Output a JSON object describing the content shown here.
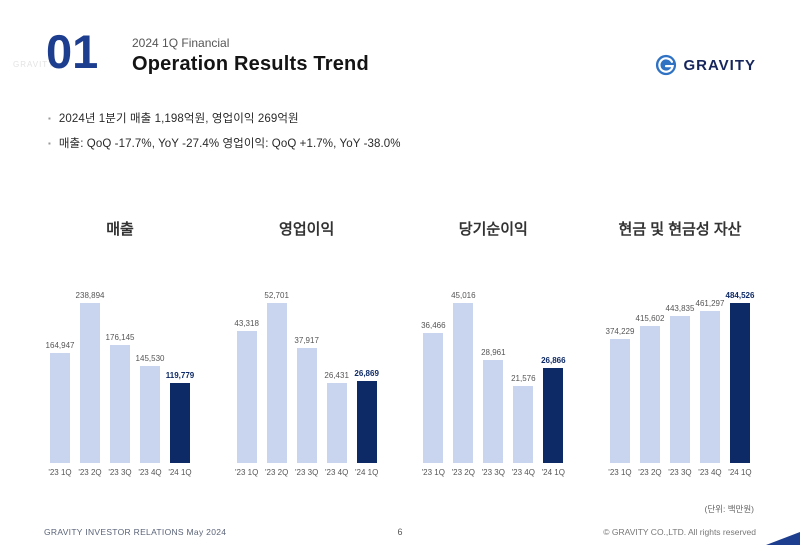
{
  "header": {
    "slide_number": "01",
    "kicker": "2024 1Q Financial",
    "title": "Operation Results Trend",
    "logo_text": "GRAVITY"
  },
  "bullets": [
    "2024년 1분기  매출 1,198억원, 영업이익 269억원",
    "매출: QoQ -17.7%, YoY -27.4%    영업이익: QoQ +1.7%, YoY -38.0%"
  ],
  "unit_note": "(단위: 백만원)",
  "footer": {
    "left": "GRAVITY INVESTOR RELATIONS May 2024",
    "page": "6",
    "right": "© GRAVITY CO.,LTD. All rights reserved"
  },
  "colors": {
    "title_blue": "#1d3d8f",
    "bar_light": "#c9d5ee",
    "bar_dark": "#0e2a66"
  },
  "chart_data": [
    {
      "type": "bar",
      "title": "매출",
      "categories": [
        "'23 1Q",
        "'23 2Q",
        "'23 3Q",
        "'23 4Q",
        "'24 1Q"
      ],
      "values": [
        164947,
        238894,
        176145,
        145530,
        119779
      ],
      "labels": [
        "164,947",
        "238,894",
        "176,145",
        "145,530",
        "119,779"
      ],
      "highlight_index": 4,
      "ylim": [
        0,
        238894
      ],
      "grid": false,
      "unit": "백만원"
    },
    {
      "type": "bar",
      "title": "영업이익",
      "categories": [
        "'23 1Q",
        "'23 2Q",
        "'23 3Q",
        "'23 4Q",
        "'24 1Q"
      ],
      "values": [
        43318,
        52701,
        37917,
        26431,
        26869
      ],
      "labels": [
        "43,318",
        "52,701",
        "37,917",
        "26,431",
        "26,869"
      ],
      "highlight_index": 4,
      "ylim": [
        0,
        52701
      ],
      "grid": false,
      "unit": "백만원"
    },
    {
      "type": "bar",
      "title": "당기순이익",
      "categories": [
        "'23 1Q",
        "'23 2Q",
        "'23 3Q",
        "'23 4Q",
        "'24 1Q"
      ],
      "values": [
        36466,
        45016,
        28961,
        21576,
        26866
      ],
      "labels": [
        "36,466",
        "45,016",
        "28,961",
        "21,576",
        "26,866"
      ],
      "highlight_index": 4,
      "ylim": [
        0,
        45016
      ],
      "grid": false,
      "unit": "백만원"
    },
    {
      "type": "bar",
      "title": "현금 및 현금성 자산",
      "categories": [
        "'23 1Q",
        "'23 2Q",
        "'23 3Q",
        "'23 4Q",
        "'24 1Q"
      ],
      "values": [
        374229,
        415602,
        443835,
        461297,
        484526
      ],
      "labels": [
        "374,229",
        "415,602",
        "443,835",
        "461,297",
        "484,526"
      ],
      "highlight_index": 4,
      "ylim": [
        0,
        484526
      ],
      "grid": false,
      "unit": "백만원"
    }
  ]
}
